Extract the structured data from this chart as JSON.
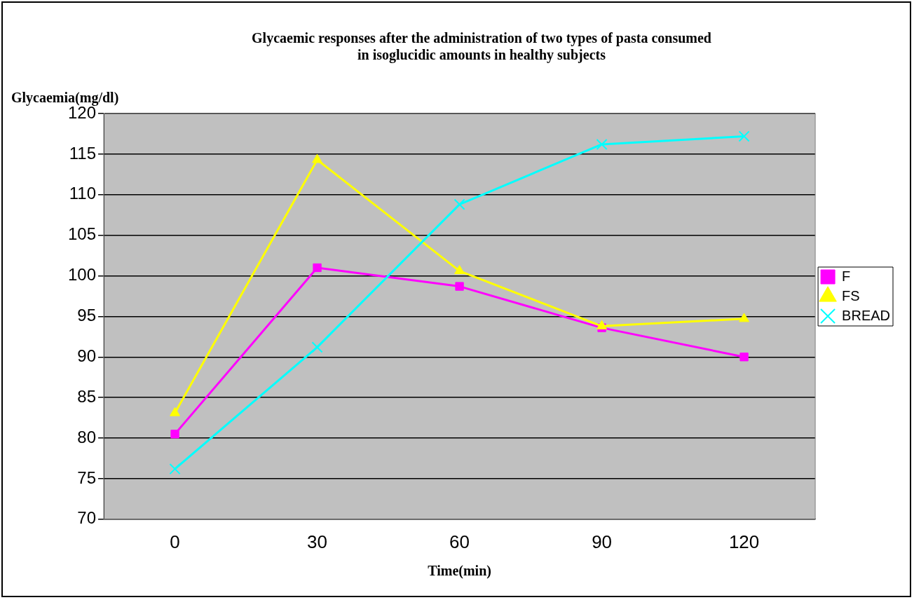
{
  "chart_data": {
    "type": "line",
    "title": "Glycaemic responses after the administration of two types of pasta consumed\nin isoglucidic amounts in healthy subjects",
    "xlabel": "Time(min)",
    "ylabel": "Glycaemia(mg/dl)",
    "categories": [
      "0",
      "30",
      "60",
      "90",
      "120"
    ],
    "series": [
      {
        "name": "F",
        "color": "#ff00ff",
        "marker": "square",
        "values": [
          80.5,
          101,
          98.7,
          93.6,
          90
        ]
      },
      {
        "name": "FS",
        "color": "#ffff00",
        "marker": "triangle",
        "values": [
          83.1,
          114.3,
          100.6,
          93.8,
          94.7
        ]
      },
      {
        "name": "BREAD",
        "color": "#00ffff",
        "marker": "cross",
        "values": [
          76.2,
          91.2,
          108.8,
          116.2,
          117.2
        ]
      }
    ],
    "ylim": [
      70,
      120
    ],
    "yticks": [
      70,
      75,
      80,
      85,
      90,
      95,
      100,
      105,
      110,
      115,
      120
    ],
    "grid": "y",
    "legend": "right",
    "line_style": "solid"
  }
}
